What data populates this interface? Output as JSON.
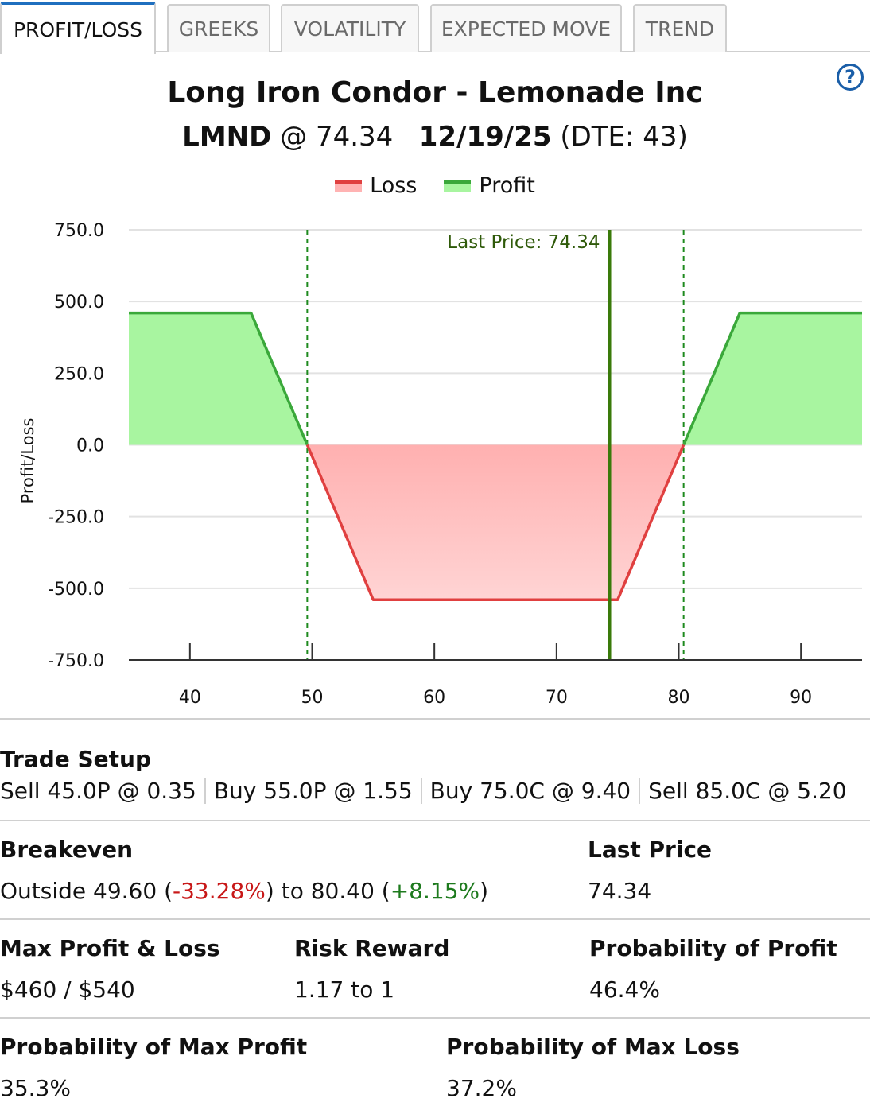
{
  "tabs": [
    {
      "label": "PROFIT/LOSS",
      "active": true
    },
    {
      "label": "GREEKS",
      "active": false
    },
    {
      "label": "VOLATILITY",
      "active": false
    },
    {
      "label": "EXPECTED MOVE",
      "active": false
    },
    {
      "label": "TREND",
      "active": false
    }
  ],
  "help_icon": "question-circle-icon",
  "header": {
    "title": "Long Iron Condor - Lemonade Inc",
    "symbol": "LMND",
    "price_text": "@ 74.34",
    "expiry": "12/19/25",
    "dte_text": "(DTE: 43)"
  },
  "legend": {
    "loss_label": "Loss",
    "profit_label": "Profit",
    "loss_color": "#e04040",
    "profit_color": "#3aa83a"
  },
  "chart_data": {
    "type": "area",
    "ylabel": "Profit/Loss",
    "xlim": [
      35,
      95
    ],
    "ylim": [
      -750,
      750
    ],
    "x_ticks": [
      40,
      50,
      60,
      70,
      80,
      90
    ],
    "y_ticks": [
      "750.0",
      "500.0",
      "250.0",
      "0.0",
      "-250.0",
      "-500.0",
      "-750.0"
    ],
    "y_tick_values": [
      750,
      500,
      250,
      0,
      -250,
      -500,
      -750
    ],
    "payoff_points": [
      [
        35,
        460
      ],
      [
        45,
        460
      ],
      [
        49.6,
        0
      ],
      [
        55,
        -540
      ],
      [
        75,
        -540
      ],
      [
        80.4,
        0
      ],
      [
        85,
        460
      ],
      [
        95,
        460
      ]
    ],
    "breakevens": [
      49.6,
      80.4
    ],
    "last_price": 74.34,
    "last_price_label": "Last Price: 74.34",
    "colors": {
      "loss_line": "#e04040",
      "profit_line": "#3aa83a",
      "loss_fill": "#ffb3b3",
      "profit_fill": "#a8f5a0",
      "last_price_line": "#3a7a0a",
      "breakeven_line": "#1e8a1e"
    }
  },
  "trade_setup": {
    "label": "Trade Setup",
    "legs": [
      "Sell 45.0P @ 0.35",
      "Buy 55.0P @ 1.55",
      "Buy 75.0C @ 9.40",
      "Sell 85.0C @ 5.20"
    ]
  },
  "breakeven": {
    "label": "Breakeven",
    "prefix": "Outside 49.60 (",
    "low_pct": "-33.28%",
    "middle": ") to 80.40 (",
    "high_pct": "+8.15%",
    "suffix": ")"
  },
  "last_price": {
    "label": "Last Price",
    "value": "74.34"
  },
  "max_profit_loss": {
    "label": "Max Profit & Loss",
    "value": "$460 / $540"
  },
  "risk_reward": {
    "label": "Risk Reward",
    "value": "1.17 to 1"
  },
  "prob_profit": {
    "label": "Probability of Profit",
    "value": "46.4%"
  },
  "prob_max_profit": {
    "label": "Probability of Max Profit",
    "value": "35.3%"
  },
  "prob_max_loss": {
    "label": "Probability of Max Loss",
    "value": "37.2%"
  }
}
